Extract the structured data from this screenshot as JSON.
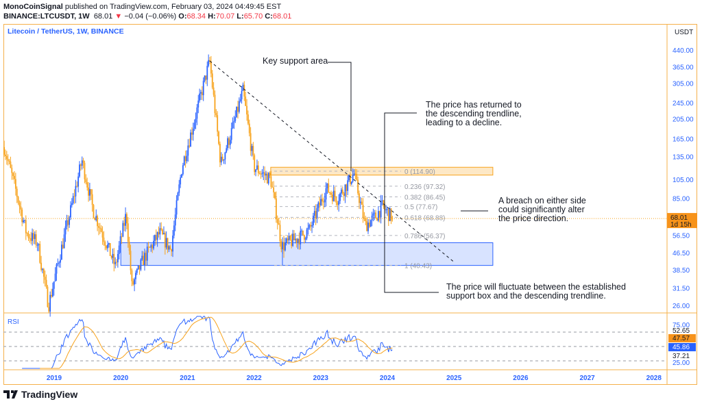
{
  "header": {
    "author": "MonoCoinSignal",
    "published": "published on TradingView.com, February 03, 2024 04:49:45 EST",
    "symbol": "BINANCE:LTCUSDT, 1W",
    "last": "68.01",
    "change": "−0.04 (−0.06%)",
    "o_label": "O:",
    "o": "68.34",
    "h_label": "H:",
    "h": "70.07",
    "l_label": "L:",
    "l": "65.70",
    "c_label": "C:",
    "c": "68.01"
  },
  "pane_title": "Litecoin / TetherUS, 1W, BINANCE",
  "currency": "USDT",
  "price_badge": {
    "price": "68.01",
    "countdown": "1d 15h"
  },
  "rsi_label": "RSI",
  "rsi_badges": [
    "52.65",
    "47.57",
    "45.86",
    "37.21",
    "25.00",
    "75.00"
  ],
  "annotations": {
    "key_support": "Key support area",
    "returned": [
      "The price has returned to",
      "the descending trendline,",
      "leading to a decline."
    ],
    "breach": [
      "A breach on either side",
      "could significantly alter",
      "the price direction."
    ],
    "fluctuate": [
      "The price will fluctuate between the established",
      "support box and the descending trendline."
    ]
  },
  "fib_levels": [
    {
      "label": "0 (114.90)",
      "price": 114.9
    },
    {
      "label": "0.236 (97.32)",
      "price": 97.32
    },
    {
      "label": "0.382 (86.45)",
      "price": 86.45
    },
    {
      "label": "0.5 (77.67)",
      "price": 77.67
    },
    {
      "label": "0.618 (68.88)",
      "price": 68.88
    },
    {
      "label": "0.786 (56.37)",
      "price": 56.37
    },
    {
      "label": "1 (40.43)",
      "price": 40.43
    }
  ],
  "logo_text": "TradingView",
  "colors": {
    "up": "#2962ff",
    "down": "#f7a21b",
    "frame": "#f5b04a",
    "rsi": "#2962ff",
    "rsi_ma": "#f7a21b",
    "support_box": "#2962ff",
    "resistance_box": "#f7a21b"
  },
  "chart_data": {
    "type": "candlestick",
    "scale": "log",
    "interval": "1W",
    "y_ticks": [
      440,
      365,
      305,
      245,
      205,
      165,
      135,
      105,
      85,
      56.5,
      46.5,
      38.5,
      31.5,
      26
    ],
    "x_ticks": [
      "2019",
      "2020",
      "2021",
      "2022",
      "2023",
      "2024",
      "2025",
      "2026",
      "2027",
      "2028"
    ],
    "approx_closes": [
      [
        "2018-04",
        150
      ],
      [
        "2018-06",
        95
      ],
      [
        "2018-08",
        58
      ],
      [
        "2018-10",
        52
      ],
      [
        "2018-12",
        26
      ],
      [
        "2019-02",
        45
      ],
      [
        "2019-04",
        75
      ],
      [
        "2019-06",
        130
      ],
      [
        "2019-08",
        75
      ],
      [
        "2019-10",
        55
      ],
      [
        "2019-12",
        40
      ],
      [
        "2020-02",
        72
      ],
      [
        "2020-03",
        32
      ],
      [
        "2020-05",
        43
      ],
      [
        "2020-08",
        58
      ],
      [
        "2020-10",
        48
      ],
      [
        "2020-12",
        120
      ],
      [
        "2021-02",
        190
      ],
      [
        "2021-05",
        390
      ],
      [
        "2021-07",
        125
      ],
      [
        "2021-09",
        180
      ],
      [
        "2021-11",
        280
      ],
      [
        "2022-01",
        120
      ],
      [
        "2022-04",
        105
      ],
      [
        "2022-06",
        50
      ],
      [
        "2022-09",
        55
      ],
      [
        "2022-11",
        60
      ],
      [
        "2023-02",
        95
      ],
      [
        "2023-04",
        85
      ],
      [
        "2023-07",
        112
      ],
      [
        "2023-09",
        63
      ],
      [
        "2023-11",
        70
      ],
      [
        "2023-12",
        78
      ],
      [
        "2024-02",
        68
      ]
    ],
    "trendline": {
      "from": [
        "2021-05",
        390
      ],
      "to": [
        "2025-01",
        42
      ]
    },
    "support_box": {
      "from": "2020-01",
      "to": "2025-08",
      "low": 40.43,
      "high": 52
    },
    "resistance_box": {
      "from": "2022-04",
      "to": "2025-08",
      "low": 110,
      "high": 120
    },
    "rsi": {
      "period": 14,
      "ma_period": 14,
      "ylim": [
        0,
        100
      ]
    }
  }
}
